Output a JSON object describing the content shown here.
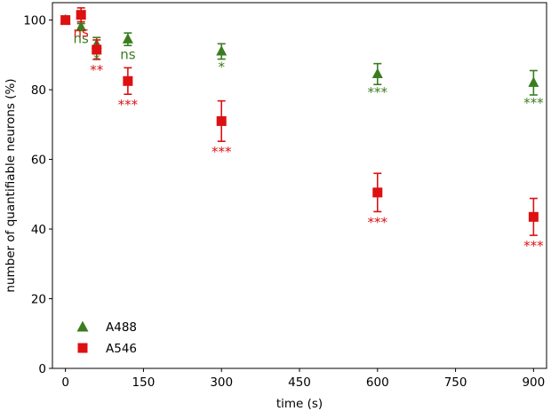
{
  "chart_data": {
    "type": "scatter",
    "title": "",
    "xlabel": "time (s)",
    "ylabel": "number of quantifiable neurons (%)",
    "xlim": [
      -25,
      925
    ],
    "ylim": [
      0,
      105
    ],
    "xticks": [
      0,
      150,
      300,
      450,
      600,
      750,
      900
    ],
    "yticks": [
      0,
      20,
      40,
      60,
      80,
      100
    ],
    "legend_position": "bottom-left",
    "series": [
      {
        "name": "A488",
        "color": "#3a7d1e",
        "marker": "triangle",
        "points": [
          {
            "x": 0,
            "y": 100,
            "err": 0,
            "sig": ""
          },
          {
            "x": 30,
            "y": 98,
            "err": 1.0,
            "sig": "ns"
          },
          {
            "x": 60,
            "y": 93,
            "err": 2.0,
            "sig": "*"
          },
          {
            "x": 120,
            "y": 94.5,
            "err": 1.8,
            "sig": "ns"
          },
          {
            "x": 300,
            "y": 91,
            "err": 2.2,
            "sig": "*"
          },
          {
            "x": 600,
            "y": 84.5,
            "err": 3.0,
            "sig": "***"
          },
          {
            "x": 900,
            "y": 82,
            "err": 3.5,
            "sig": "***"
          }
        ]
      },
      {
        "name": "A546",
        "color": "#dd1111",
        "marker": "square",
        "points": [
          {
            "x": 0,
            "y": 100,
            "err": 0,
            "sig": ""
          },
          {
            "x": 30,
            "y": 101.5,
            "err": 2.0,
            "sig": "ns"
          },
          {
            "x": 60,
            "y": 91.5,
            "err": 2.8,
            "sig": "**"
          },
          {
            "x": 120,
            "y": 82.5,
            "err": 3.8,
            "sig": "***"
          },
          {
            "x": 300,
            "y": 71,
            "err": 5.8,
            "sig": "***"
          },
          {
            "x": 600,
            "y": 50.5,
            "err": 5.5,
            "sig": "***"
          },
          {
            "x": 900,
            "y": 43.5,
            "err": 5.3,
            "sig": "***"
          }
        ]
      }
    ]
  }
}
